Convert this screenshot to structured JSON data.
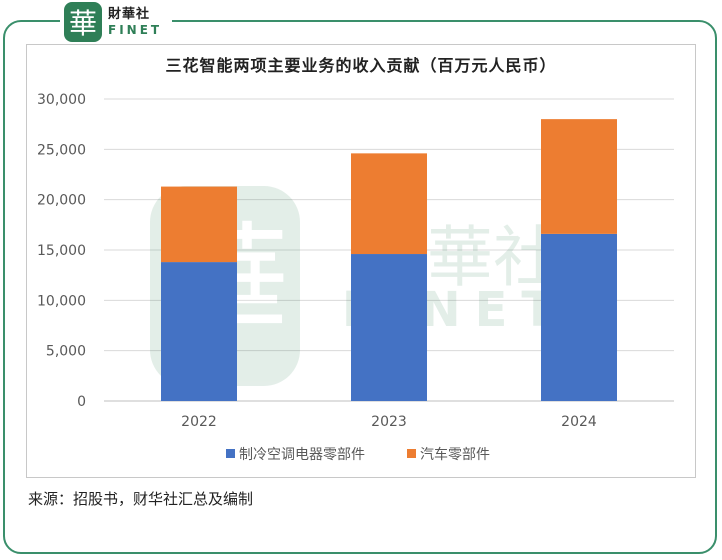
{
  "logo": {
    "seal_char": "華",
    "name_cn": "財華社",
    "name_en": "FINET"
  },
  "watermark": {
    "seal_char": "華",
    "name_cn": "財華社",
    "name_en": "FINET"
  },
  "colors": {
    "frame": "#3a8f6b",
    "series_refrigeration": "#4472c4",
    "series_auto": "#ed7d31",
    "grid": "#d9d9d9"
  },
  "chart_data": {
    "type": "bar",
    "stacked": true,
    "title": "三花智能两项主要业务的收入贡献（百万元人民币）",
    "categories": [
      "2022",
      "2023",
      "2024"
    ],
    "series": [
      {
        "name": "制冷空调电器零部件",
        "values": [
          13800,
          14600,
          16600
        ]
      },
      {
        "name": "汽车零部件",
        "values": [
          7500,
          10000,
          11400
        ]
      }
    ],
    "y_ticks": [
      "0",
      "5,000",
      "10,000",
      "15,000",
      "20,000",
      "25,000",
      "30,000"
    ],
    "ylim": [
      0,
      30000
    ],
    "grid": true,
    "legend_position": "bottom"
  },
  "source_text": "来源：招股书，财华社汇总及编制"
}
